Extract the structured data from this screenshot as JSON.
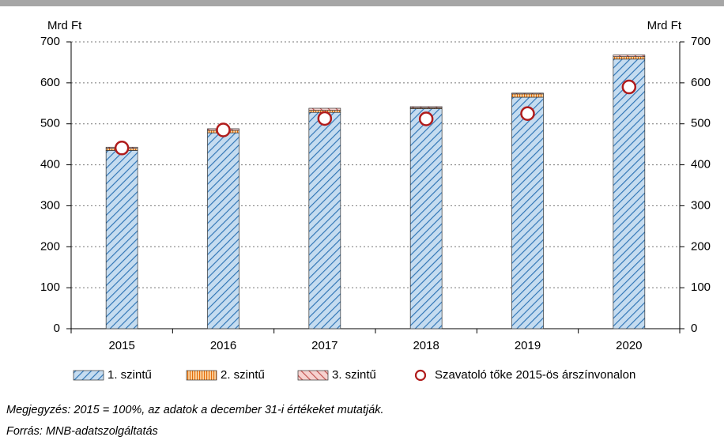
{
  "chart_data": {
    "type": "bar",
    "y_axis_label": "Mrd Ft",
    "y2_axis_label": "Mrd Ft",
    "categories": [
      "2015",
      "2016",
      "2017",
      "2018",
      "2019",
      "2020"
    ],
    "series": [
      {
        "name": "1. szintű",
        "type": "bar",
        "color": "#2e74b5",
        "fill": "#c5dcf0",
        "hatch": "diagonal-down",
        "values": [
          435,
          478,
          528,
          537,
          565,
          658
        ]
      },
      {
        "name": "2. szintű",
        "type": "bar",
        "color": "#e46c0a",
        "fill": "#fbd4a0",
        "hatch": "vertical",
        "values": [
          5,
          6,
          5,
          2,
          8,
          6
        ]
      },
      {
        "name": "3. szintű",
        "type": "bar",
        "color": "#c0504d",
        "fill": "#f6d2cf",
        "hatch": "diagonal-up",
        "values": [
          3,
          4,
          5,
          3,
          2,
          4
        ]
      },
      {
        "name": "Szavatoló tőke 2015-ös árszínvonalon",
        "type": "scatter",
        "color": "#b01c1c",
        "values": [
          441,
          485,
          513,
          512,
          525,
          590
        ]
      }
    ],
    "ylim": [
      0,
      700
    ],
    "yticks": [
      0,
      100,
      200,
      300,
      400,
      500,
      600,
      700
    ],
    "y2lim": [
      0,
      700
    ],
    "y2ticks": [
      0,
      100,
      200,
      300,
      400,
      500,
      600,
      700
    ],
    "grid": true,
    "legend": "bottom",
    "notes": [
      "Megjegyzés: 2015 = 100%, az adatok a december 31-i értékeket mutatják.",
      "Forrás: MNB-adatszolgáltatás"
    ]
  }
}
